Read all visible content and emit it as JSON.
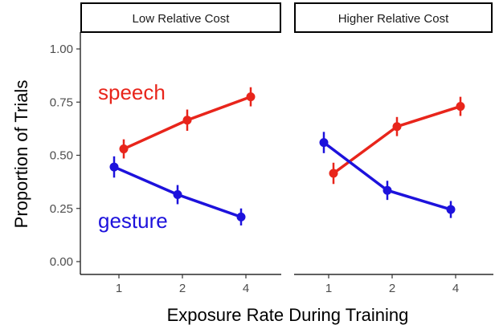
{
  "chart_data": {
    "type": "line",
    "xlabel": "Exposure Rate During Training",
    "ylabel": "Proportion of Trials",
    "x_ticks": [
      "1",
      "2",
      "4"
    ],
    "y_ticks": [
      "0.00",
      "0.25",
      "0.50",
      "0.75",
      "1.00"
    ],
    "ylim": [
      0,
      1
    ],
    "grid": false,
    "error_bars": true,
    "panels": [
      {
        "title": "Low Relative Cost",
        "series": [
          {
            "name": "speech",
            "color": "#e8251b",
            "x": [
              "1",
              "2",
              "4"
            ],
            "values": [
              0.53,
              0.665,
              0.775
            ],
            "error": [
              0.045,
              0.05,
              0.045
            ],
            "label_shown": true
          },
          {
            "name": "gesture",
            "color": "#1d12dc",
            "x": [
              "1",
              "2",
              "4"
            ],
            "values": [
              0.445,
              0.315,
              0.21
            ],
            "error": [
              0.05,
              0.045,
              0.04
            ],
            "label_shown": true
          }
        ]
      },
      {
        "title": "Higher Relative Cost",
        "series": [
          {
            "name": "speech",
            "color": "#e8251b",
            "x": [
              "1",
              "2",
              "4"
            ],
            "values": [
              0.415,
              0.635,
              0.73
            ],
            "error": [
              0.05,
              0.045,
              0.045
            ],
            "label_shown": false
          },
          {
            "name": "gesture",
            "color": "#1d12dc",
            "x": [
              "1",
              "2",
              "4"
            ],
            "values": [
              0.56,
              0.335,
              0.245
            ],
            "error": [
              0.05,
              0.045,
              0.04
            ],
            "label_shown": false
          }
        ]
      }
    ]
  }
}
